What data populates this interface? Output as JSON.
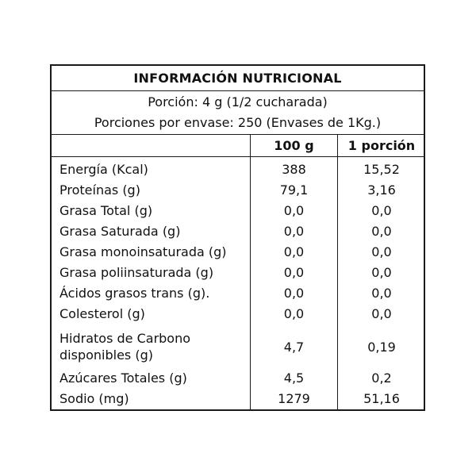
{
  "title": "INFORMACIÓN NUTRICIONAL",
  "serving": "Porción: 4 g (1/2 cucharada)",
  "servings_per_container": "Porciones por envase: 250 (Envases de 1Kg.)",
  "columns": [
    "100 g",
    "1 porción"
  ],
  "rows": [
    {
      "label": "Energía (Kcal)",
      "per100": "388",
      "perServing": "15,52"
    },
    {
      "label": "Proteínas (g)",
      "per100": "79,1",
      "perServing": "3,16"
    },
    {
      "label": "Grasa Total (g)",
      "per100": "0,0",
      "perServing": "0,0"
    },
    {
      "label": "Grasa Saturada (g)",
      "per100": "0,0",
      "perServing": "0,0"
    },
    {
      "label": "Grasa monoinsaturada (g)",
      "per100": "0,0",
      "perServing": "0,0"
    },
    {
      "label": "Grasa poliinsaturada (g)",
      "per100": "0,0",
      "perServing": "0,0"
    },
    {
      "label": "Ácidos grasos trans (g).",
      "per100": "0,0",
      "perServing": "0,0"
    },
    {
      "label": "Colesterol (g)",
      "per100": "0,0",
      "perServing": "0,0"
    },
    {
      "label_lines": [
        "Hidratos de Carbono",
        "disponibles (g)"
      ],
      "per100": "4,7",
      "perServing": "0,19"
    },
    {
      "label": "Azúcares Totales (g)",
      "per100": "4,5",
      "perServing": "0,2"
    },
    {
      "label": "Sodio (mg)",
      "per100": "1279",
      "perServing": "51,16"
    }
  ]
}
